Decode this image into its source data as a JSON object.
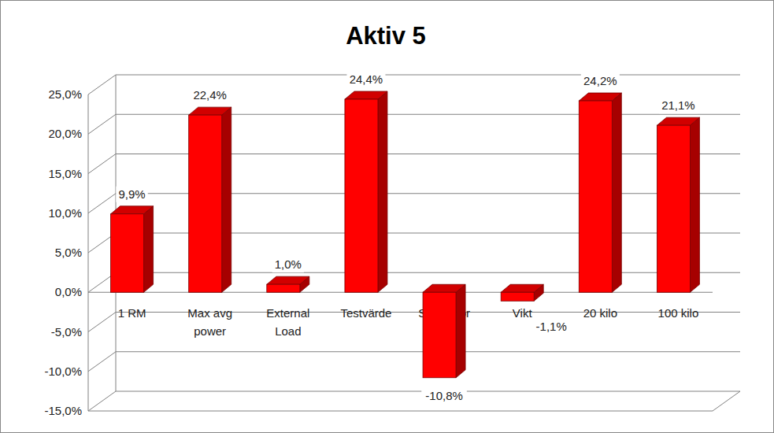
{
  "chart_data": {
    "type": "bar",
    "title": "Aktiv 5",
    "categories": [
      "1 RM",
      "Max avg power",
      "External Load",
      "Testvärde",
      "S/S factor",
      "Vikt",
      "20 kilo",
      "100 kilo"
    ],
    "values": [
      9.9,
      22.4,
      1.0,
      24.4,
      -10.8,
      -1.1,
      24.2,
      21.1
    ],
    "value_labels": [
      "9,9%",
      "22,4%",
      "1,0%",
      "24,4%",
      "-10,8%",
      "-1,1%",
      "24,2%",
      "21,1%"
    ],
    "color": "#ff0000",
    "ylim": [
      -15,
      25
    ],
    "yticks": [
      {
        "value": -15,
        "label": "-15,0%"
      },
      {
        "value": -10,
        "label": "-10,0%"
      },
      {
        "value": -5,
        "label": "-5,0%"
      },
      {
        "value": 0,
        "label": "0,0%"
      },
      {
        "value": 5,
        "label": "5,0%"
      },
      {
        "value": 10,
        "label": "10,0%"
      },
      {
        "value": 15,
        "label": "15,0%"
      },
      {
        "value": 20,
        "label": "20,0%"
      },
      {
        "value": 25,
        "label": "25,0%"
      }
    ],
    "grid": true,
    "data_labels": true
  }
}
